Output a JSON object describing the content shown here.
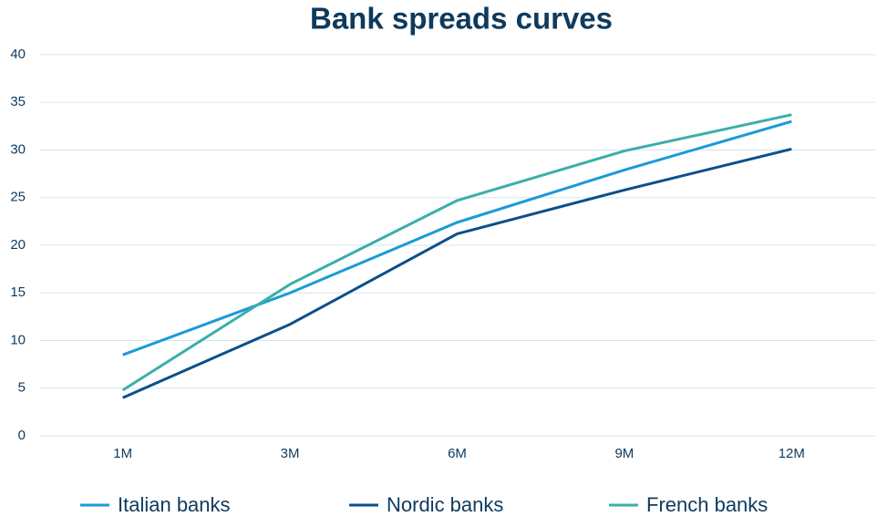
{
  "chart_data": {
    "type": "line",
    "title": "Bank spreads curves",
    "categories": [
      "1M",
      "3M",
      "6M",
      "9M",
      "12M"
    ],
    "series": [
      {
        "name": "Italian banks",
        "color": "#1a9bd7",
        "values": [
          8.5,
          15.0,
          22.4,
          27.9,
          33.0
        ]
      },
      {
        "name": "Nordic banks",
        "color": "#0b4f8a",
        "values": [
          4.0,
          11.7,
          21.2,
          25.8,
          30.1
        ]
      },
      {
        "name": "French banks",
        "color": "#3aafa9",
        "values": [
          4.8,
          15.9,
          24.7,
          29.9,
          33.7
        ]
      }
    ],
    "ylim": [
      0,
      40
    ],
    "yticks": [
      0,
      5,
      10,
      15,
      20,
      25,
      30,
      35,
      40
    ],
    "grid": true,
    "legend": "bottom"
  }
}
